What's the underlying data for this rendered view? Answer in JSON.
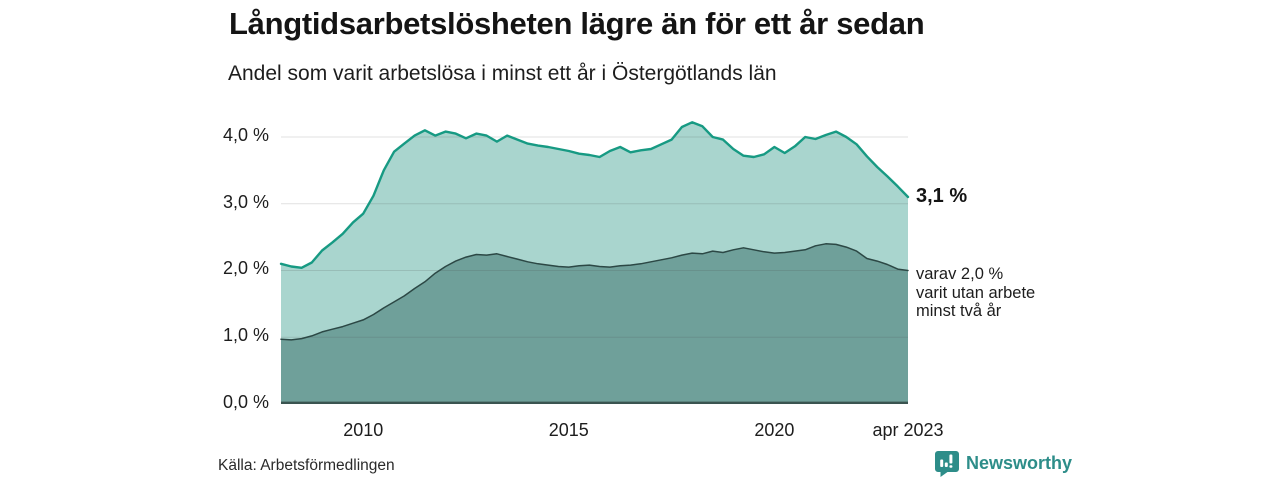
{
  "chart_data": {
    "type": "area",
    "title": "Långtidsarbetslösheten lägre än för ett år sedan",
    "subtitle": "Andel som varit arbetslösa i minst ett år i Östergötlands län",
    "xlabel": "",
    "ylabel": "",
    "xlim": [
      2008,
      2023.25
    ],
    "ylim": [
      0,
      4.374
    ],
    "grid": "horizontal",
    "legend": "end-of-line-labels",
    "x": [
      2008,
      2008.25,
      2008.5,
      2008.75,
      2009,
      2009.25,
      2009.5,
      2009.75,
      2010,
      2010.25,
      2010.5,
      2010.75,
      2011,
      2011.25,
      2011.5,
      2011.75,
      2012,
      2012.25,
      2012.5,
      2012.75,
      2013,
      2013.25,
      2013.5,
      2013.75,
      2014,
      2014.25,
      2014.5,
      2014.75,
      2015,
      2015.25,
      2015.5,
      2015.75,
      2016,
      2016.25,
      2016.5,
      2016.75,
      2017,
      2017.25,
      2017.5,
      2017.75,
      2018,
      2018.25,
      2018.5,
      2018.75,
      2019,
      2019.25,
      2019.5,
      2019.75,
      2020,
      2020.25,
      2020.5,
      2020.75,
      2021,
      2021.25,
      2021.5,
      2021.75,
      2022,
      2022.25,
      2022.5,
      2022.75,
      2023,
      2023.25
    ],
    "series": [
      {
        "name": "Andel arbetslösa minst ett år",
        "line_color": "#179a83",
        "fill_color": "#a9d5ce",
        "end_label": "3,1 %",
        "values": [
          2.1,
          2.06,
          2.04,
          2.12,
          2.3,
          2.42,
          2.55,
          2.72,
          2.85,
          3.12,
          3.5,
          3.78,
          3.9,
          4.02,
          4.1,
          4.02,
          4.08,
          4.05,
          3.98,
          4.05,
          4.02,
          3.93,
          4.02,
          3.96,
          3.9,
          3.87,
          3.85,
          3.82,
          3.79,
          3.75,
          3.73,
          3.7,
          3.79,
          3.85,
          3.77,
          3.8,
          3.82,
          3.89,
          3.96,
          4.15,
          4.22,
          4.16,
          4.0,
          3.96,
          3.82,
          3.72,
          3.7,
          3.74,
          3.85,
          3.76,
          3.86,
          4.0,
          3.97,
          4.03,
          4.08,
          4.0,
          3.89,
          3.71,
          3.55,
          3.41,
          3.26,
          3.1
        ]
      },
      {
        "name": "varav utan arbete minst två år",
        "line_color": "#2c4845",
        "fill_color": "#6fa09a",
        "end_label_lines": [
          "varav 2,0 %",
          "varit utan arbete",
          "minst två år"
        ],
        "values": [
          0.97,
          0.96,
          0.98,
          1.02,
          1.08,
          1.12,
          1.16,
          1.21,
          1.26,
          1.34,
          1.44,
          1.53,
          1.62,
          1.73,
          1.83,
          1.96,
          2.06,
          2.14,
          2.2,
          2.24,
          2.23,
          2.25,
          2.21,
          2.17,
          2.13,
          2.1,
          2.08,
          2.06,
          2.05,
          2.07,
          2.08,
          2.06,
          2.05,
          2.07,
          2.08,
          2.1,
          2.13,
          2.16,
          2.19,
          2.23,
          2.26,
          2.25,
          2.29,
          2.27,
          2.31,
          2.34,
          2.31,
          2.28,
          2.26,
          2.27,
          2.29,
          2.31,
          2.37,
          2.4,
          2.39,
          2.35,
          2.29,
          2.18,
          2.14,
          2.09,
          2.02,
          2.0
        ]
      }
    ],
    "y_ticks": [
      {
        "v": 0,
        "label": "0,0 %"
      },
      {
        "v": 1,
        "label": "1,0 %"
      },
      {
        "v": 2,
        "label": "2,0 %"
      },
      {
        "v": 3,
        "label": "3,0 %"
      },
      {
        "v": 4,
        "label": "4,0 %"
      }
    ],
    "x_ticks": [
      {
        "t": 2010,
        "label": "2010"
      },
      {
        "t": 2015,
        "label": "2015"
      },
      {
        "t": 2020,
        "label": "2020"
      },
      {
        "t": 2023.25,
        "label": "apr 2023"
      }
    ]
  },
  "footer": {
    "source": "Källa: Arbetsförmedlingen",
    "brand_name": "Newsworthy"
  },
  "colors": {
    "accent_line": "#179a83",
    "accent_fill": "#a9d5ce",
    "dark_line": "#2c4845",
    "dark_fill": "#6fa09a",
    "axis_line": "#3a5450",
    "grid": "#d9d9d9",
    "text": "#1d1d1d",
    "brand_teal": "#2d8d89"
  }
}
